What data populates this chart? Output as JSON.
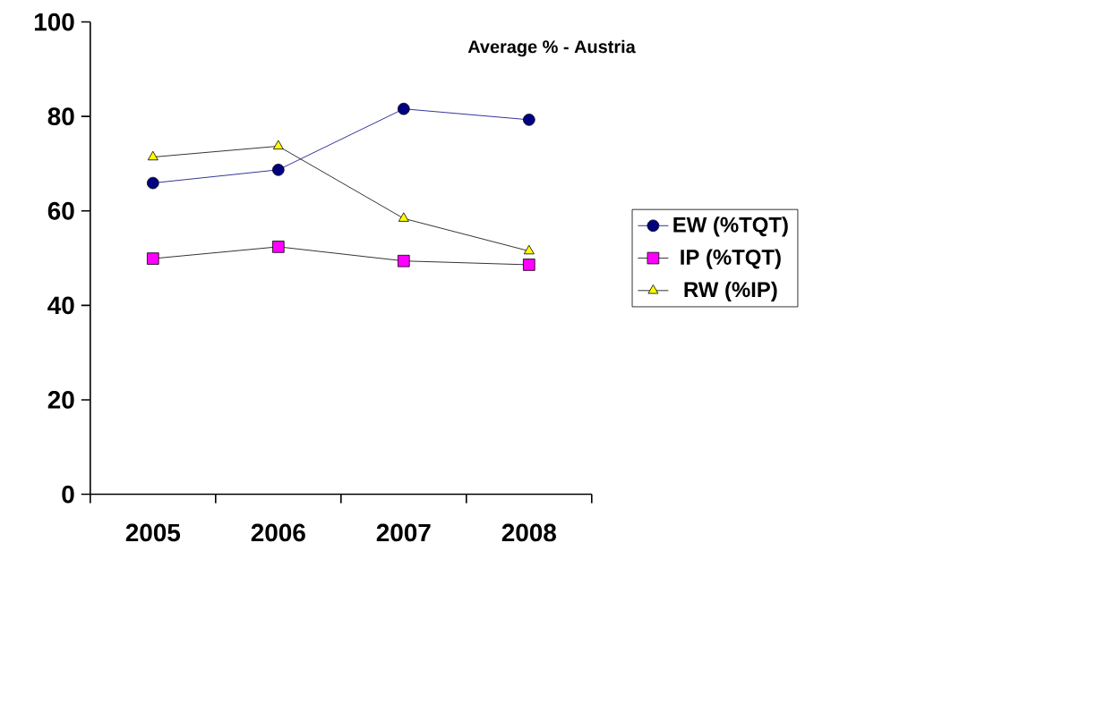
{
  "chart_data": {
    "type": "line",
    "title": "Average % - Austria",
    "categories": [
      "2005",
      "2006",
      "2007",
      "2008"
    ],
    "series": [
      {
        "name": "EW (%TQT)",
        "color": "#000080",
        "marker": "circle",
        "values": [
          65.9,
          68.7,
          81.6,
          79.3
        ]
      },
      {
        "name": "IP (%TQT)",
        "color": "#ff00ff",
        "marker": "square",
        "values": [
          49.9,
          52.4,
          49.4,
          48.6
        ]
      },
      {
        "name": "RW (%IP)",
        "color": "#ffff00",
        "marker": "triangle",
        "values": [
          71.4,
          73.7,
          58.4,
          51.5
        ]
      }
    ],
    "ylim": [
      0,
      100
    ],
    "yticks": [
      0,
      20,
      40,
      60,
      80,
      100
    ],
    "grid": false,
    "legend": "right",
    "line_style": "solid"
  }
}
